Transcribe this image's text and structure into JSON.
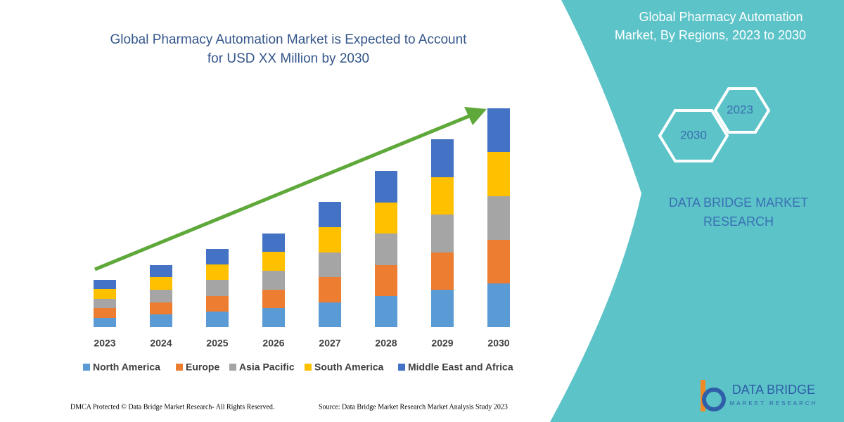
{
  "chart_data": {
    "type": "stacked-bar",
    "title": [
      "Global Pharmacy Automation Market is Expected to Account",
      "for USD XX Million by 2030"
    ],
    "categories": [
      "2023",
      "2024",
      "2025",
      "2026",
      "2027",
      "2028",
      "2029",
      "2030"
    ],
    "series": [
      {
        "name": "North America",
        "color": "#5b9bd5",
        "values": [
          13,
          18,
          22,
          27,
          35,
          44,
          53,
          62
        ]
      },
      {
        "name": "Europe",
        "color": "#ed7d31",
        "values": [
          14,
          17,
          22,
          26,
          36,
          44,
          53,
          62
        ]
      },
      {
        "name": "Asia Pacific",
        "color": "#a5a5a5",
        "values": [
          13,
          18,
          23,
          27,
          35,
          45,
          54,
          62
        ]
      },
      {
        "name": "South America",
        "color": "#ffc000",
        "values": [
          14,
          18,
          22,
          27,
          36,
          44,
          53,
          63
        ]
      },
      {
        "name": "Middle East and Africa",
        "color": "#4472c4",
        "values": [
          13,
          17,
          22,
          26,
          36,
          45,
          54,
          62
        ]
      }
    ],
    "legend": "bottom"
  },
  "panel": {
    "title": [
      "Global Pharmacy Automation",
      "Market, By Regions, 2023 to 2030"
    ],
    "hexagons": [
      "2023",
      "2030"
    ],
    "brand": [
      "DATA BRIDGE MARKET",
      "RESEARCH"
    ]
  },
  "logo": {
    "name": "DATA BRIDGE",
    "tagline": "MARKET RESEARCH"
  },
  "footer": {
    "rights": "DMCA Protected © Data Bridge Market Research-  All Rights Reserved.",
    "source": "Source: Data Bridge Market Research  Market Analysis Study 2023"
  }
}
